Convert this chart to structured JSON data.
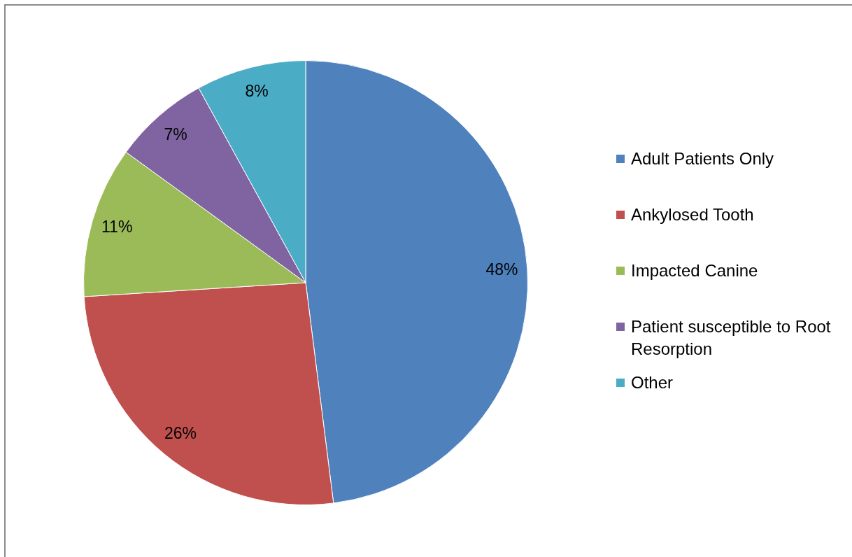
{
  "chart_data": {
    "type": "pie",
    "categories": [
      "Adult Patients Only",
      "Ankylosed Tooth",
      "Impacted Canine",
      "Patient susceptible to Root Resorption",
      "Other"
    ],
    "values": [
      48,
      26,
      11,
      7,
      8
    ],
    "colors": [
      "#4f81bd",
      "#c0504d",
      "#9bbb59",
      "#8064a2",
      "#4bacc6"
    ],
    "value_labels": [
      "48%",
      "26%",
      "11%",
      "7%",
      "8%"
    ],
    "legend": "right"
  }
}
